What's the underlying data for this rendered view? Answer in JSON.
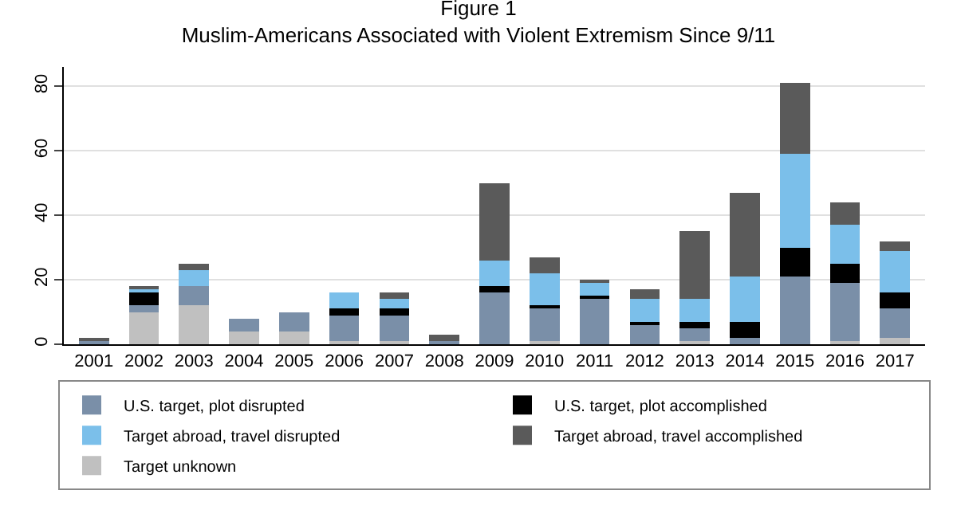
{
  "chart_data": {
    "type": "bar",
    "stacked": true,
    "title": "Figure 1",
    "subtitle": "Muslim-Americans Associated with Violent Extremism Since 9/11",
    "categories": [
      "2001",
      "2002",
      "2003",
      "2004",
      "2005",
      "2006",
      "2007",
      "2008",
      "2009",
      "2010",
      "2011",
      "2012",
      "2013",
      "2014",
      "2015",
      "2016",
      "2017"
    ],
    "series": [
      {
        "name": "Target unknown",
        "color": "#c0c0c0",
        "values": [
          0,
          10,
          12,
          4,
          4,
          1,
          1,
          0,
          0,
          1,
          0,
          0,
          1,
          0,
          0,
          1,
          2
        ]
      },
      {
        "name": "U.S. target, plot disrupted",
        "color": "#7a8fa8",
        "values": [
          1,
          2,
          6,
          4,
          6,
          8,
          8,
          1,
          16,
          10,
          14,
          6,
          4,
          2,
          21,
          18,
          9
        ]
      },
      {
        "name": "U.S. target, plot accomplished",
        "color": "#000000",
        "values": [
          0,
          4,
          0,
          0,
          0,
          2,
          2,
          0,
          2,
          1,
          1,
          1,
          2,
          5,
          9,
          6,
          5
        ]
      },
      {
        "name": "Target abroad, travel disrupted",
        "color": "#7bbfea",
        "values": [
          0,
          1,
          5,
          0,
          0,
          5,
          3,
          0,
          8,
          10,
          4,
          7,
          7,
          14,
          29,
          12,
          13
        ]
      },
      {
        "name": "Target abroad, travel accomplished",
        "color": "#5a5a5a",
        "values": [
          1,
          1,
          2,
          0,
          0,
          0,
          2,
          2,
          24,
          5,
          1,
          3,
          21,
          26,
          22,
          7,
          3
        ]
      }
    ],
    "ylim": [
      0,
      86
    ],
    "yticks": [
      0,
      20,
      40,
      60,
      80
    ],
    "grid": "y",
    "legend": "bottom"
  }
}
